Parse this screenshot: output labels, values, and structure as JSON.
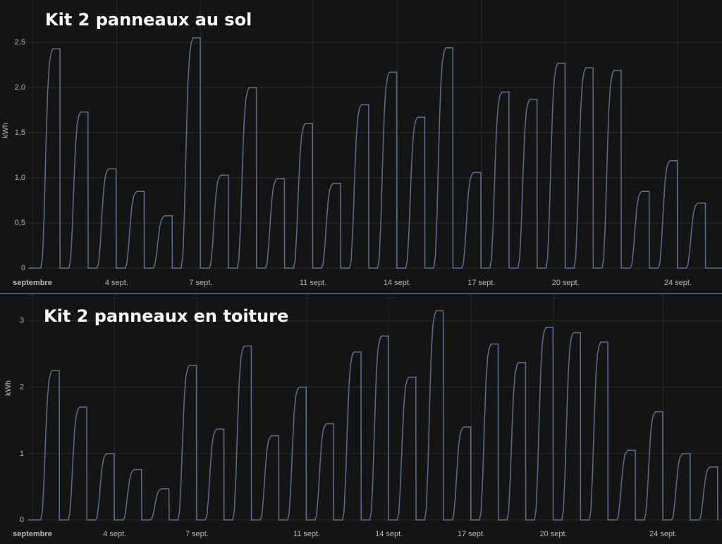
{
  "chart_data": [
    {
      "type": "energy-line",
      "title": "Kit 2 panneaux au sol",
      "y_label": "kWh",
      "categories": [
        "septembre",
        null,
        null,
        "4 sept.",
        null,
        null,
        "7 sept.",
        null,
        null,
        null,
        "11 sept.",
        null,
        null,
        "14 sept.",
        null,
        null,
        "17 sept.",
        null,
        null,
        "20 sept.",
        null,
        null,
        null,
        "24 sept.",
        null
      ],
      "values": [
        2.43,
        1.73,
        1.1,
        0.85,
        0.58,
        2.55,
        1.03,
        2.0,
        0.99,
        1.6,
        0.94,
        1.81,
        2.17,
        1.67,
        2.44,
        1.06,
        1.95,
        1.87,
        2.27,
        2.22,
        2.19,
        0.85,
        1.19,
        0.72,
        0
      ],
      "color": "#5b6e99",
      "ylim": [
        0,
        2.97
      ],
      "yticks": [
        0,
        {
          "value": 0.5,
          "label": "0,5"
        },
        {
          "value": 1,
          "label": "1,0"
        },
        {
          "value": 1.5,
          "label": "1,5"
        },
        {
          "value": 2,
          "label": "2,0"
        },
        {
          "value": 2.5,
          "label": "2,5"
        }
      ],
      "grid": true
    },
    {
      "type": "energy-line",
      "title": "Kit 2 panneaux en toiture",
      "y_label": "kWh",
      "categories": [
        "septembre",
        null,
        null,
        "4 sept.",
        null,
        null,
        "7 sept.",
        null,
        null,
        null,
        "11 sept.",
        null,
        null,
        "14 sept.",
        null,
        null,
        "17 sept.",
        null,
        null,
        "20 sept.",
        null,
        null,
        null,
        "24 sept.",
        null
      ],
      "values": [
        2.25,
        1.7,
        1.0,
        0.76,
        0.47,
        2.33,
        1.37,
        2.62,
        1.27,
        2.0,
        1.45,
        2.53,
        2.77,
        2.15,
        3.15,
        1.4,
        2.65,
        2.37,
        2.9,
        2.82,
        2.68,
        1.05,
        1.63,
        1.0,
        0.8
      ],
      "color": "#5b6e99",
      "ylim": [
        0,
        3.4
      ],
      "yticks": [
        0,
        1,
        2,
        3
      ],
      "grid": true
    }
  ]
}
